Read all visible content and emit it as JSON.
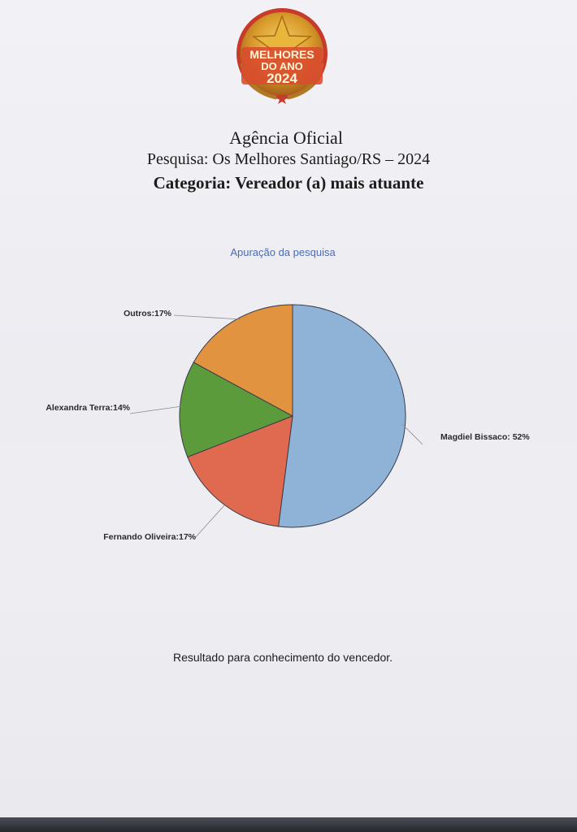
{
  "logo": {
    "text_line1": "MELHORES",
    "text_line2": "DO ANO",
    "text_line3": "2024"
  },
  "header": {
    "line1": "Agência Oficial",
    "line2": "Pesquisa: Os Melhores Santiago/RS – 2024",
    "line3": "Categoria: Vereador (a) mais atuante"
  },
  "footer": {
    "text": "Resultado para conhecimento do vencedor."
  },
  "colors": {
    "title": "#4a6cb2",
    "magdiel": "#8fb3d7",
    "fernando": "#e06a50",
    "alexandra": "#5c9b3c",
    "outros": "#e29340"
  },
  "chart_data": {
    "type": "pie",
    "title": "Apuração da pesquisa",
    "slices": [
      {
        "label": "Magdiel Bissaco: 52%",
        "value": 52
      },
      {
        "label": "Fernando Oliveira:17%",
        "value": 17
      },
      {
        "label": "Alexandra Terra:14%",
        "value": 14
      },
      {
        "label": "Outros:17%",
        "value": 17
      }
    ],
    "start_angle": "12 o'clock",
    "direction": "clockwise",
    "legend": "none (labels beside slices)"
  }
}
